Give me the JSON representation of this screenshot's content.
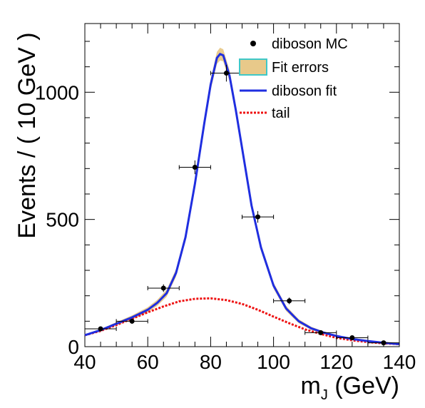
{
  "chart_data": {
    "type": "line",
    "title": "",
    "xlabel_main": "m",
    "xlabel_sub": "J",
    "xlabel_unit": " (GeV)",
    "ylabel": "Events / ( 10 GeV )",
    "xlim": [
      40,
      140
    ],
    "ylim": [
      0,
      1270
    ],
    "x_ticks": [
      40,
      60,
      80,
      100,
      120,
      140
    ],
    "y_ticks": [
      0,
      500,
      1000
    ],
    "grid": false,
    "legend_position": "top-right",
    "legend": {
      "mc": "diboson MC",
      "errors": "Fit errors",
      "fit": "diboson fit",
      "tail": "tail"
    },
    "colors": {
      "mc": "#000000",
      "errors_fill": "#e8c98a",
      "errors_border": "#3ec8c8",
      "fit": "#1f2ee0",
      "tail": "#ee1111"
    },
    "mc_points": {
      "name": "diboson MC",
      "x": [
        45,
        55,
        65,
        75,
        85,
        95,
        105,
        115,
        125,
        135
      ],
      "y": [
        70,
        100,
        230,
        705,
        1075,
        510,
        180,
        55,
        35,
        15
      ],
      "xerr": 5,
      "yerr": [
        8,
        10,
        15,
        27,
        33,
        23,
        13,
        7,
        6,
        4
      ]
    },
    "fit_curve": {
      "name": "diboson fit",
      "x": [
        40,
        45,
        50,
        55,
        60,
        63,
        66,
        69,
        72,
        75,
        78,
        80,
        82,
        83,
        84,
        86,
        88,
        90,
        93,
        96,
        100,
        104,
        108,
        112,
        116,
        120,
        125,
        130,
        135,
        140
      ],
      "y": [
        45,
        65,
        90,
        115,
        145,
        172,
        210,
        290,
        430,
        640,
        880,
        1030,
        1135,
        1150,
        1145,
        1065,
        930,
        780,
        555,
        390,
        240,
        150,
        100,
        72,
        55,
        42,
        30,
        22,
        15,
        10
      ]
    },
    "error_band_halfwidth": [
      3,
      4,
      6,
      8,
      10,
      12,
      14,
      15,
      16,
      18,
      20,
      22,
      24,
      25,
      24,
      22,
      20,
      18,
      16,
      14,
      12,
      10,
      8,
      6,
      5,
      4,
      3,
      3,
      2,
      2
    ],
    "tail_curve": {
      "name": "tail",
      "x": [
        40,
        45,
        50,
        55,
        60,
        65,
        70,
        75,
        80,
        85,
        90,
        95,
        100,
        105,
        110,
        115,
        120,
        125,
        130,
        135,
        140
      ],
      "y": [
        45,
        62,
        85,
        110,
        135,
        158,
        178,
        188,
        190,
        183,
        168,
        145,
        118,
        92,
        68,
        50,
        35,
        25,
        18,
        13,
        10
      ]
    }
  }
}
